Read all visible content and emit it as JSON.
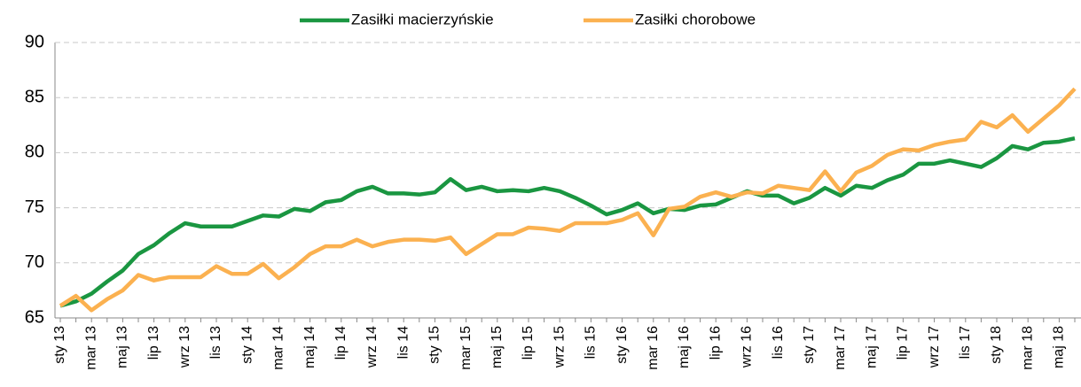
{
  "chart_data": {
    "type": "line",
    "categories": [
      "sty 13",
      null,
      "mar 13",
      null,
      "maj 13",
      null,
      "lip 13",
      null,
      "wrz 13",
      null,
      "lis 13",
      null,
      "sty 14",
      null,
      "mar 14",
      null,
      "maj 14",
      null,
      "lip 14",
      null,
      "wrz 14",
      null,
      "lis 14",
      null,
      "sty 15",
      null,
      "mar 15",
      null,
      "maj 15",
      null,
      "lip 15",
      null,
      "wrz 15",
      null,
      "lis 15",
      null,
      "sty 16",
      null,
      "mar 16",
      null,
      "maj 16",
      null,
      "lip 16",
      null,
      "wrz 16",
      null,
      "lis 16",
      null,
      "sty 17",
      null,
      "mar 17",
      null,
      "maj 17",
      null,
      "lip 17",
      null,
      "wrz 17",
      null,
      "lis 17",
      null,
      "sty 18",
      null,
      "mar 18",
      null,
      "maj 18",
      null
    ],
    "series": [
      {
        "name": "Zasiłki macierzyńskie",
        "color": "#1a9641",
        "values": [
          66.1,
          66.5,
          67.2,
          68.3,
          69.3,
          70.8,
          71.6,
          72.7,
          73.6,
          73.3,
          73.3,
          73.3,
          73.8,
          74.3,
          74.2,
          74.9,
          74.7,
          75.5,
          75.7,
          76.5,
          76.9,
          76.3,
          76.3,
          76.2,
          76.4,
          77.6,
          76.6,
          76.9,
          76.5,
          76.6,
          76.5,
          76.8,
          76.5,
          75.9,
          75.2,
          74.4,
          74.8,
          75.4,
          74.5,
          74.9,
          74.8,
          75.2,
          75.3,
          75.9,
          76.5,
          76.1,
          76.1,
          75.4,
          75.9,
          76.8,
          76.1,
          77.0,
          76.8,
          77.5,
          78.0,
          79.0,
          79.0,
          79.3,
          79.0,
          78.7,
          79.5,
          80.6,
          80.3,
          80.9,
          81.0,
          81.3
        ]
      },
      {
        "name": "Zasiłki chorobowe",
        "color": "#fbb150",
        "values": [
          66.1,
          67.0,
          65.7,
          66.7,
          67.5,
          68.9,
          68.4,
          68.7,
          68.7,
          68.7,
          69.7,
          69.0,
          69.0,
          69.9,
          68.6,
          69.6,
          70.8,
          71.5,
          71.5,
          72.1,
          71.5,
          71.9,
          72.1,
          72.1,
          72.0,
          72.3,
          70.8,
          71.7,
          72.6,
          72.6,
          73.2,
          73.1,
          72.9,
          73.6,
          73.6,
          73.6,
          73.9,
          74.5,
          72.5,
          74.9,
          75.1,
          76.0,
          76.4,
          76.0,
          76.4,
          76.3,
          77.0,
          76.8,
          76.6,
          78.3,
          76.5,
          78.2,
          78.8,
          79.8,
          80.3,
          80.2,
          80.7,
          81.0,
          81.2,
          82.8,
          82.3,
          83.4,
          81.9,
          83.1,
          84.3,
          85.8
        ]
      }
    ],
    "ylim": [
      65,
      90
    ],
    "yticks": [
      65,
      70,
      75,
      80,
      85,
      90
    ],
    "grid": true,
    "legend": "top"
  }
}
